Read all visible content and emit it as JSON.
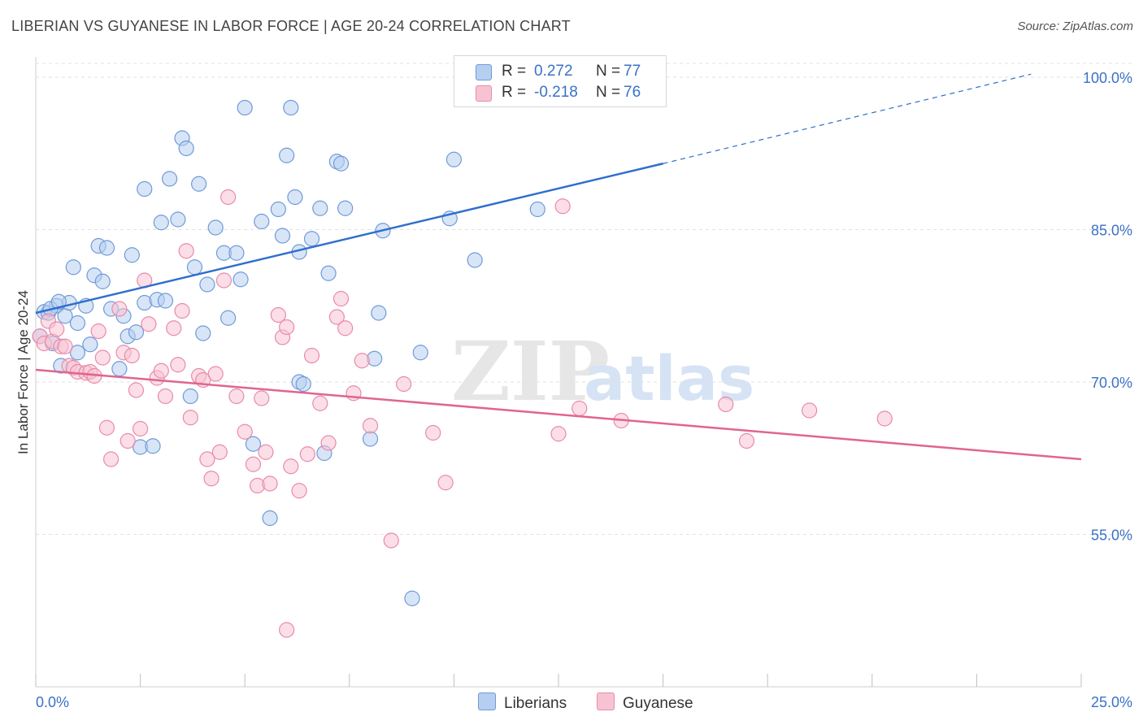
{
  "header": {
    "title": "LIBERIAN VS GUYANESE IN LABOR FORCE | AGE 20-24 CORRELATION CHART",
    "source": "Source: ZipAtlas.com"
  },
  "legend": {
    "rows": [
      {
        "r_label": "R =",
        "r_value": "0.272",
        "n_label": "N =",
        "n_value": "77"
      },
      {
        "r_label": "R =",
        "r_value": "-0.218",
        "n_label": "N =",
        "n_value": "76"
      }
    ]
  },
  "bottom_legend": {
    "items": [
      "Liberians",
      "Guyanese"
    ]
  },
  "chart_data": {
    "type": "scatter",
    "ylabel": "In Labor Force | Age 20-24",
    "x_tick_labels": [
      "0.0%",
      "25.0%"
    ],
    "y_tick_labels": [
      "100.0%",
      "85.0%",
      "70.0%",
      "55.0%"
    ],
    "xlim": [
      0,
      25
    ],
    "ylim": [
      40,
      102
    ],
    "y_ticks": [
      100,
      85,
      70,
      55
    ],
    "watermark": {
      "zip": "ZIP",
      "atlas": "atlas"
    },
    "colors": {
      "liberians_fill": "#b6cff0",
      "liberians_stroke": "#6f9ad8",
      "liberians_line": "#2f6fcc",
      "guyanese_fill": "#f7c3d3",
      "guyanese_stroke": "#e98aa8",
      "guyanese_line": "#e0658f"
    },
    "series": [
      {
        "name": "Liberians",
        "trend": {
          "x0": 0,
          "y0": 76.8,
          "x1": 15,
          "y1": 91.5,
          "dash_x1": 23.8,
          "dash_y1": 100.3
        },
        "points": [
          [
            0.2,
            76.9
          ],
          [
            0.3,
            76.8
          ],
          [
            0.4,
            73.8
          ],
          [
            0.5,
            77.5
          ],
          [
            0.6,
            71.6
          ],
          [
            0.7,
            76.5
          ],
          [
            0.8,
            77.8
          ],
          [
            0.9,
            81.3
          ],
          [
            1.0,
            75.8
          ],
          [
            1.0,
            72.9
          ],
          [
            1.2,
            77.5
          ],
          [
            1.3,
            73.7
          ],
          [
            1.4,
            80.5
          ],
          [
            1.5,
            83.4
          ],
          [
            1.6,
            79.9
          ],
          [
            1.7,
            83.2
          ],
          [
            1.8,
            77.2
          ],
          [
            2.0,
            71.3
          ],
          [
            2.1,
            76.5
          ],
          [
            2.2,
            74.5
          ],
          [
            2.3,
            82.5
          ],
          [
            2.4,
            74.9
          ],
          [
            2.5,
            63.6
          ],
          [
            2.6,
            77.8
          ],
          [
            2.6,
            89.0
          ],
          [
            2.8,
            63.7
          ],
          [
            2.9,
            78.1
          ],
          [
            3.0,
            85.7
          ],
          [
            3.1,
            78.0
          ],
          [
            3.2,
            90.0
          ],
          [
            3.4,
            86.0
          ],
          [
            3.5,
            94.0
          ],
          [
            3.6,
            93.0
          ],
          [
            3.7,
            68.6
          ],
          [
            3.8,
            81.3
          ],
          [
            3.9,
            89.5
          ],
          [
            4.0,
            74.8
          ],
          [
            4.1,
            79.6
          ],
          [
            4.3,
            85.2
          ],
          [
            4.5,
            82.7
          ],
          [
            4.6,
            76.3
          ],
          [
            4.8,
            82.7
          ],
          [
            4.9,
            80.1
          ],
          [
            5.0,
            97.0
          ],
          [
            5.2,
            63.9
          ],
          [
            5.4,
            85.8
          ],
          [
            5.6,
            56.6
          ],
          [
            5.8,
            87.0
          ],
          [
            5.9,
            84.4
          ],
          [
            6.0,
            92.3
          ],
          [
            6.1,
            97.0
          ],
          [
            6.2,
            88.2
          ],
          [
            6.3,
            82.8
          ],
          [
            6.3,
            70.0
          ],
          [
            6.4,
            69.8
          ],
          [
            6.6,
            84.1
          ],
          [
            6.8,
            87.1
          ],
          [
            6.9,
            63.0
          ],
          [
            7.0,
            80.7
          ],
          [
            7.2,
            91.7
          ],
          [
            7.3,
            91.5
          ],
          [
            7.4,
            87.1
          ],
          [
            8.0,
            64.4
          ],
          [
            8.1,
            72.3
          ],
          [
            8.2,
            76.8
          ],
          [
            8.3,
            84.9
          ],
          [
            9.0,
            48.7
          ],
          [
            9.2,
            72.9
          ],
          [
            9.9,
            86.1
          ],
          [
            10.0,
            91.9
          ],
          [
            10.5,
            82.0
          ],
          [
            11.0,
            100.0
          ],
          [
            12.0,
            87.0
          ],
          [
            13.5,
            100.0
          ],
          [
            0.1,
            74.5
          ],
          [
            0.35,
            77.2
          ],
          [
            0.55,
            77.9
          ]
        ]
      },
      {
        "name": "Guyanese",
        "trend": {
          "x0": 0,
          "y0": 71.2,
          "x1": 25,
          "y1": 62.4
        },
        "points": [
          [
            0.1,
            74.5
          ],
          [
            0.2,
            73.8
          ],
          [
            0.3,
            76.0
          ],
          [
            0.4,
            74.0
          ],
          [
            0.5,
            75.2
          ],
          [
            0.6,
            73.5
          ],
          [
            0.7,
            73.5
          ],
          [
            0.8,
            71.6
          ],
          [
            0.9,
            71.4
          ],
          [
            1.0,
            71.0
          ],
          [
            1.2,
            70.9
          ],
          [
            1.3,
            71.0
          ],
          [
            1.4,
            70.6
          ],
          [
            1.5,
            75.0
          ],
          [
            1.6,
            72.4
          ],
          [
            1.7,
            65.5
          ],
          [
            1.8,
            62.4
          ],
          [
            2.0,
            77.2
          ],
          [
            2.1,
            72.9
          ],
          [
            2.2,
            64.2
          ],
          [
            2.3,
            72.6
          ],
          [
            2.4,
            69.2
          ],
          [
            2.5,
            65.4
          ],
          [
            2.6,
            80.0
          ],
          [
            2.7,
            75.7
          ],
          [
            2.9,
            70.4
          ],
          [
            3.0,
            71.1
          ],
          [
            3.1,
            68.6
          ],
          [
            3.3,
            75.3
          ],
          [
            3.4,
            71.7
          ],
          [
            3.5,
            77.0
          ],
          [
            3.6,
            82.9
          ],
          [
            3.7,
            66.5
          ],
          [
            3.9,
            70.6
          ],
          [
            4.0,
            70.2
          ],
          [
            4.1,
            62.4
          ],
          [
            4.2,
            60.5
          ],
          [
            4.3,
            70.8
          ],
          [
            4.4,
            63.1
          ],
          [
            4.5,
            80.0
          ],
          [
            4.6,
            88.2
          ],
          [
            4.8,
            68.6
          ],
          [
            5.0,
            65.1
          ],
          [
            5.2,
            61.9
          ],
          [
            5.3,
            59.8
          ],
          [
            5.4,
            68.4
          ],
          [
            5.5,
            63.1
          ],
          [
            5.6,
            60.0
          ],
          [
            5.8,
            76.6
          ],
          [
            5.9,
            74.4
          ],
          [
            6.0,
            75.4
          ],
          [
            6.1,
            61.7
          ],
          [
            6.3,
            59.3
          ],
          [
            6.5,
            62.9
          ],
          [
            6.6,
            72.6
          ],
          [
            6.8,
            67.9
          ],
          [
            7.0,
            64.0
          ],
          [
            7.2,
            76.4
          ],
          [
            7.3,
            78.2
          ],
          [
            7.4,
            75.3
          ],
          [
            7.6,
            68.9
          ],
          [
            7.8,
            72.1
          ],
          [
            8.0,
            65.7
          ],
          [
            8.5,
            54.4
          ],
          [
            8.8,
            69.8
          ],
          [
            9.5,
            65.0
          ],
          [
            9.8,
            60.1
          ],
          [
            12.5,
            64.9
          ],
          [
            6.0,
            45.6
          ],
          [
            12.6,
            87.3
          ],
          [
            13.0,
            67.4
          ],
          [
            14.0,
            66.2
          ],
          [
            16.5,
            67.8
          ],
          [
            17.0,
            64.2
          ],
          [
            18.5,
            67.2
          ],
          [
            20.3,
            66.4
          ]
        ]
      }
    ]
  }
}
